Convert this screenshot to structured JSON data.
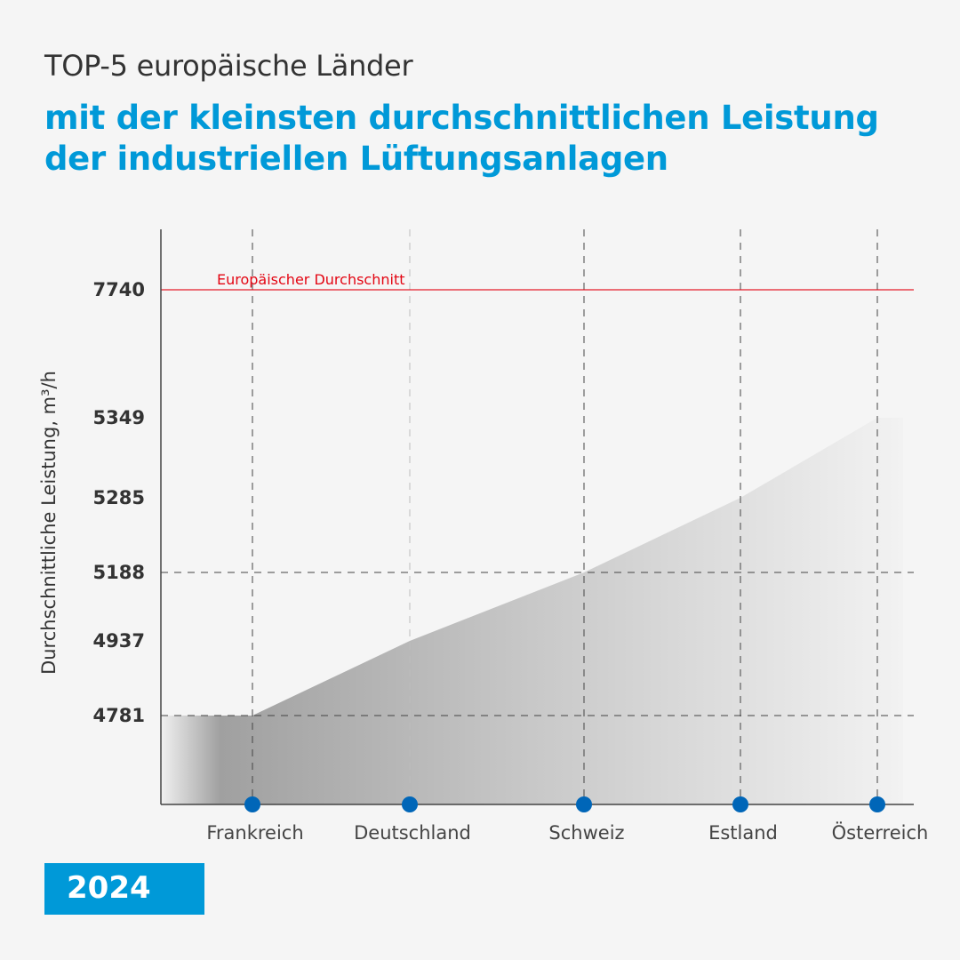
{
  "header": {
    "title_top": "TOP-5 europäische Länder",
    "title_main": "mit der kleinsten durchschnittlichen Leistung der industriellen Lüftungsanlagen"
  },
  "year_badge": "2024",
  "colors": {
    "accent": "#0099d8",
    "reference": "#e30613",
    "point": "#0066b8",
    "text": "#333333"
  },
  "chart_data": {
    "type": "area",
    "title": "",
    "xlabel": "",
    "ylabel": "Durchschnittliche Leistung, m³/h",
    "categories": [
      "Frankreich",
      "Deutschland",
      "Schweiz",
      "Estland",
      "Österreich"
    ],
    "series": [
      {
        "values": [
          4781,
          4937,
          5188,
          5285,
          5349
        ]
      }
    ],
    "y_tick_labels": [
      "4781",
      "4937",
      "5188",
      "5285",
      "5349",
      "7740"
    ],
    "reference_line": {
      "value": 7740,
      "label": "Europäischer Durchschnitt"
    },
    "y_scale": "non-linear (ticks at data values)",
    "grid": "dashed vertical at categories, dashed horizontal at 4781 and 5188",
    "legend": "none"
  }
}
